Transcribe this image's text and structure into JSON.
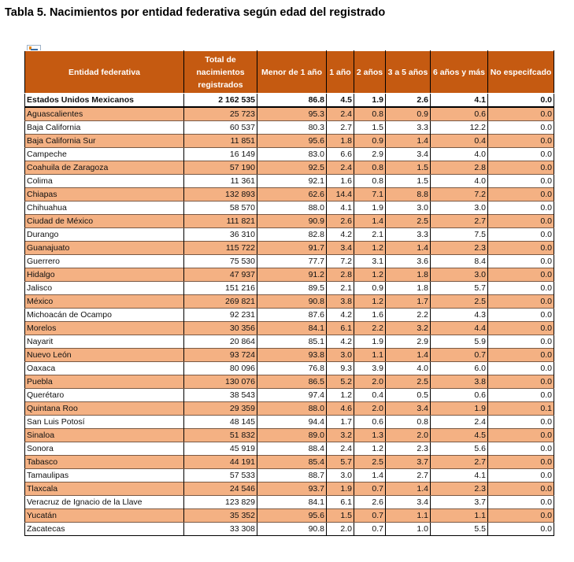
{
  "title": "Tabla 5. Nacimientos por entidad federativa según edad del registrado",
  "columns": [
    "Entidad federativa",
    "Total de nacimientos registrados",
    "Menor de 1 año",
    "1 año",
    "2 años",
    "3 a 5 años",
    "6 años y más",
    "No especifcado"
  ],
  "total_row": [
    "Estados Unidos Mexicanos",
    "2 162 535",
    "86.8",
    "4.5",
    "1.9",
    "2.6",
    "4.1",
    "0.0"
  ],
  "rows": [
    [
      "Aguascalientes",
      "25 723",
      "95.3",
      "2.4",
      "0.8",
      "0.9",
      "0.6",
      "0.0"
    ],
    [
      "Baja California",
      "60 537",
      "80.3",
      "2.7",
      "1.5",
      "3.3",
      "12.2",
      "0.0"
    ],
    [
      "Baja California Sur",
      "11 851",
      "95.6",
      "1.8",
      "0.9",
      "1.4",
      "0.4",
      "0.0"
    ],
    [
      "Campeche",
      "16 149",
      "83.0",
      "6.6",
      "2.9",
      "3.4",
      "4.0",
      "0.0"
    ],
    [
      "Coahuila de Zaragoza",
      "57 190",
      "92.5",
      "2.4",
      "0.8",
      "1.5",
      "2.8",
      "0.0"
    ],
    [
      "Colima",
      "11 361",
      "92.1",
      "1.6",
      "0.8",
      "1.5",
      "4.0",
      "0.0"
    ],
    [
      "Chiapas",
      "132 893",
      "62.6",
      "14.4",
      "7.1",
      "8.8",
      "7.2",
      "0.0"
    ],
    [
      "Chihuahua",
      "58 570",
      "88.0",
      "4.1",
      "1.9",
      "3.0",
      "3.0",
      "0.0"
    ],
    [
      "Ciudad de México",
      "111 821",
      "90.9",
      "2.6",
      "1.4",
      "2.5",
      "2.7",
      "0.0"
    ],
    [
      "Durango",
      "36 310",
      "82.8",
      "4.2",
      "2.1",
      "3.3",
      "7.5",
      "0.0"
    ],
    [
      "Guanajuato",
      "115 722",
      "91.7",
      "3.4",
      "1.2",
      "1.4",
      "2.3",
      "0.0"
    ],
    [
      "Guerrero",
      "75 530",
      "77.7",
      "7.2",
      "3.1",
      "3.6",
      "8.4",
      "0.0"
    ],
    [
      "Hidalgo",
      "47 937",
      "91.2",
      "2.8",
      "1.2",
      "1.8",
      "3.0",
      "0.0"
    ],
    [
      "Jalisco",
      "151 216",
      "89.5",
      "2.1",
      "0.9",
      "1.8",
      "5.7",
      "0.0"
    ],
    [
      "México",
      "269 821",
      "90.8",
      "3.8",
      "1.2",
      "1.7",
      "2.5",
      "0.0"
    ],
    [
      "Michoacán de Ocampo",
      "92 231",
      "87.6",
      "4.2",
      "1.6",
      "2.2",
      "4.3",
      "0.0"
    ],
    [
      "Morelos",
      "30 356",
      "84.1",
      "6.1",
      "2.2",
      "3.2",
      "4.4",
      "0.0"
    ],
    [
      "Nayarit",
      "20 864",
      "85.1",
      "4.2",
      "1.9",
      "2.9",
      "5.9",
      "0.0"
    ],
    [
      "Nuevo León",
      "93 724",
      "93.8",
      "3.0",
      "1.1",
      "1.4",
      "0.7",
      "0.0"
    ],
    [
      "Oaxaca",
      "80 096",
      "76.8",
      "9.3",
      "3.9",
      "4.0",
      "6.0",
      "0.0"
    ],
    [
      "Puebla",
      "130 076",
      "86.5",
      "5.2",
      "2.0",
      "2.5",
      "3.8",
      "0.0"
    ],
    [
      "Querétaro",
      "38 543",
      "97.4",
      "1.2",
      "0.4",
      "0.5",
      "0.6",
      "0.0"
    ],
    [
      "Quintana Roo",
      "29 359",
      "88.0",
      "4.6",
      "2.0",
      "3.4",
      "1.9",
      "0.1"
    ],
    [
      "San Luis Potosí",
      "48 145",
      "94.4",
      "1.7",
      "0.6",
      "0.8",
      "2.4",
      "0.0"
    ],
    [
      "Sinaloa",
      "51 832",
      "89.0",
      "3.2",
      "1.3",
      "2.0",
      "4.5",
      "0.0"
    ],
    [
      "Sonora",
      "45 919",
      "88.4",
      "2.4",
      "1.2",
      "2.3",
      "5.6",
      "0.0"
    ],
    [
      "Tabasco",
      "44 191",
      "85.4",
      "5.7",
      "2.5",
      "3.7",
      "2.7",
      "0.0"
    ],
    [
      "Tamaulipas",
      "57 533",
      "88.7",
      "3.0",
      "1.4",
      "2.7",
      "4.1",
      "0.0"
    ],
    [
      "Tlaxcala",
      "24 546",
      "93.7",
      "1.9",
      "0.7",
      "1.4",
      "2.3",
      "0.0"
    ],
    [
      "Veracruz de Ignacio de la Llave",
      "123 829",
      "84.1",
      "6.1",
      "2.6",
      "3.4",
      "3.7",
      "0.0"
    ],
    [
      "Yucatán",
      "35 352",
      "95.6",
      "1.5",
      "0.7",
      "1.1",
      "1.1",
      "0.0"
    ],
    [
      "Zacatecas",
      "33 308",
      "90.8",
      "2.0",
      "0.7",
      "1.0",
      "5.5",
      "0.0"
    ]
  ],
  "colors": {
    "header": "#c55a11",
    "stripe": "#f4b183"
  }
}
